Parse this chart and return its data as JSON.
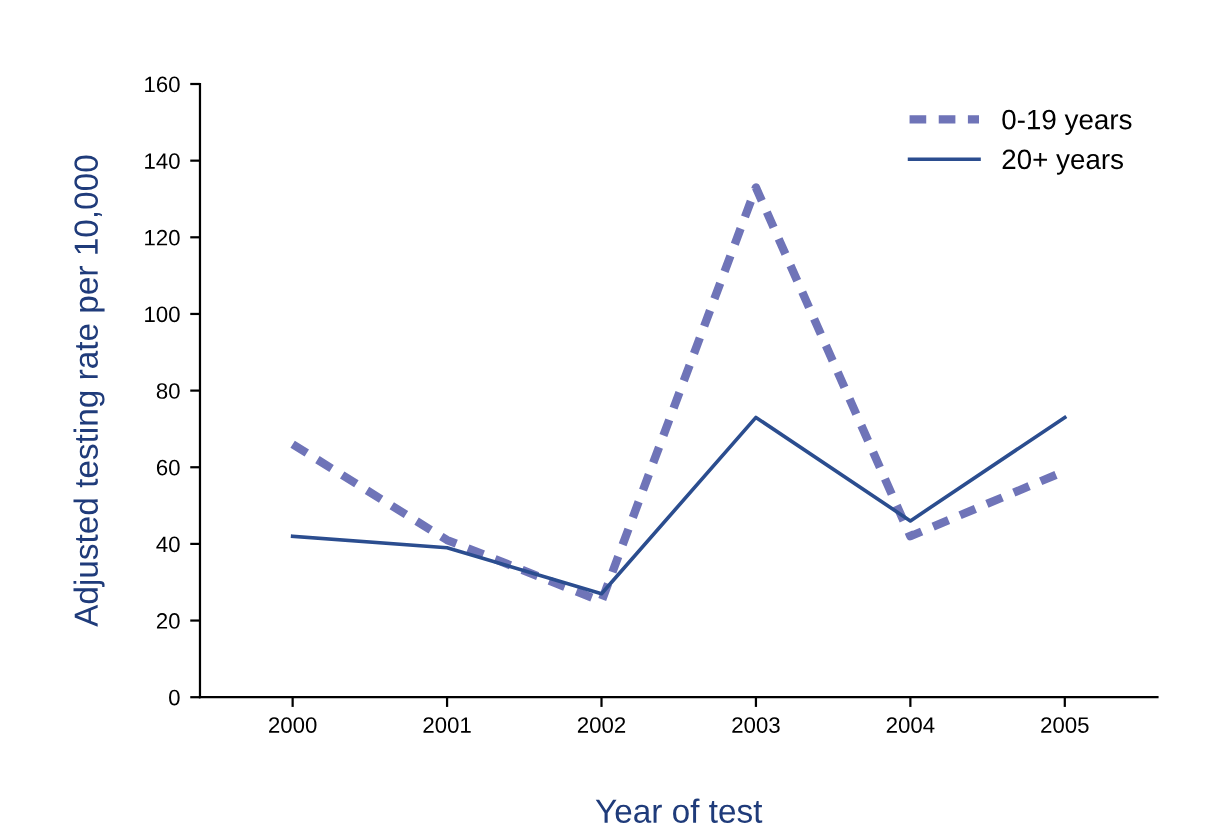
{
  "chart_data": {
    "type": "line",
    "xlabel": "Year of test",
    "ylabel": "Adjusted testing rate per 10,000",
    "categories": [
      "2000",
      "2001",
      "2002",
      "2003",
      "2004",
      "2005"
    ],
    "series": [
      {
        "name": "0-19 years",
        "color": "#6f74b8",
        "line_style": "dashed",
        "values": [
          66,
          41,
          25,
          133,
          42,
          59
        ]
      },
      {
        "name": "20+ years",
        "color": "#2b4d8f",
        "line_style": "solid",
        "values": [
          42,
          39,
          27,
          73,
          46,
          73
        ]
      }
    ],
    "ylim": [
      0,
      160
    ],
    "yticks": [
      0,
      20,
      40,
      60,
      80,
      100,
      120,
      140,
      160
    ],
    "grid": false,
    "legend": "top right"
  }
}
